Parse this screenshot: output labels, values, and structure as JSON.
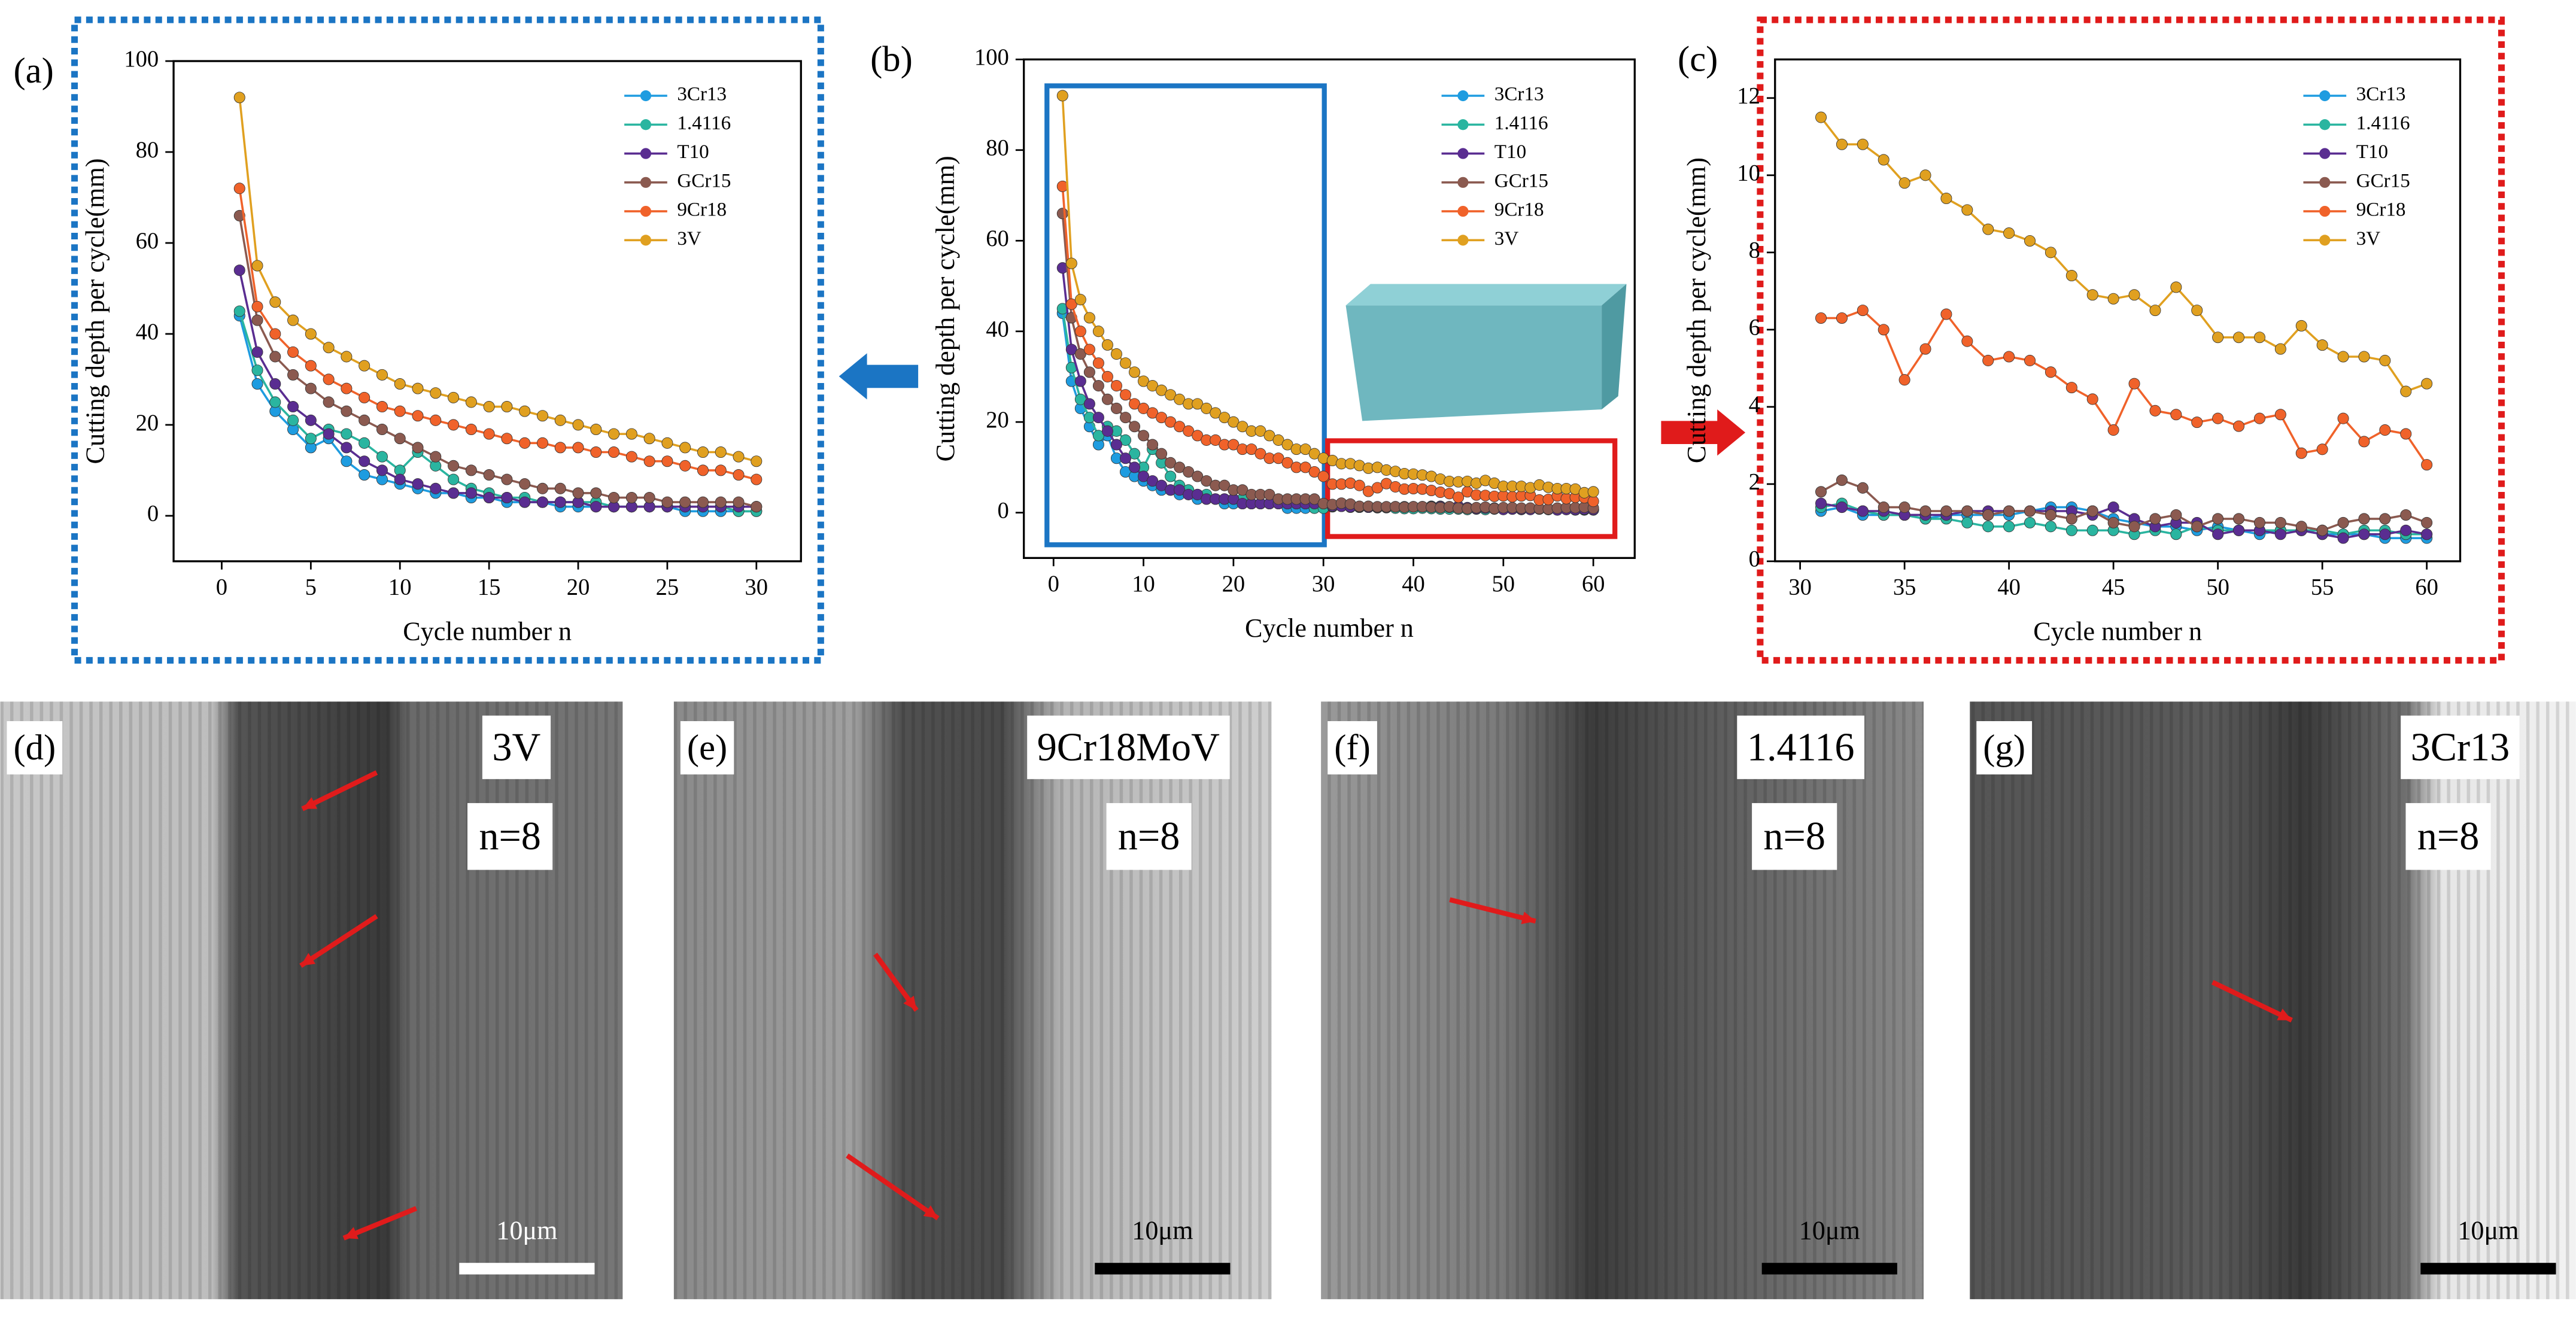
{
  "chart_data": [
    {
      "type": "line",
      "label": "(a)",
      "x_label": "Cycle number n",
      "y_label": "Cutting depth per cycle(mm)",
      "x": [
        1,
        2,
        3,
        4,
        5,
        6,
        7,
        8,
        9,
        10,
        11,
        12,
        13,
        14,
        15,
        16,
        17,
        18,
        19,
        20,
        21,
        22,
        23,
        24,
        25,
        26,
        27,
        28,
        29,
        30
      ],
      "xlim": [
        -2.7,
        32.5
      ],
      "xticks": [
        0,
        5,
        10,
        15,
        20,
        25,
        30
      ],
      "ylim": [
        -10,
        100
      ],
      "yticks": [
        0,
        20,
        40,
        60,
        80,
        100
      ],
      "series": [
        {
          "name": "3Cr13",
          "color": "#1e9ce0",
          "values": [
            44,
            29,
            23,
            19,
            15,
            17,
            12,
            9,
            8,
            7,
            6,
            5,
            5,
            4,
            4,
            3,
            3,
            3,
            2,
            2,
            2,
            2,
            2,
            2,
            2,
            1,
            1,
            1,
            1,
            1
          ]
        },
        {
          "name": "1.4116",
          "color": "#2ab5a0",
          "values": [
            45,
            32,
            25,
            21,
            17,
            19,
            18,
            16,
            13,
            10,
            14,
            11,
            8,
            6,
            5,
            4,
            4,
            3,
            3,
            3,
            3,
            2,
            2,
            2,
            2,
            2,
            2,
            2,
            1,
            1
          ]
        },
        {
          "name": "T10",
          "color": "#5a2d91",
          "values": [
            54,
            36,
            29,
            24,
            21,
            18,
            15,
            12,
            10,
            8,
            7,
            6,
            5,
            5,
            4,
            4,
            3,
            3,
            3,
            3,
            2,
            2,
            2,
            2,
            2,
            2,
            2,
            2,
            2,
            2
          ]
        },
        {
          "name": "GCr15",
          "color": "#8b5a50",
          "values": [
            66,
            43,
            35,
            31,
            28,
            25,
            23,
            21,
            19,
            17,
            15,
            13,
            11,
            10,
            9,
            8,
            7,
            6,
            6,
            5,
            5,
            4,
            4,
            4,
            3,
            3,
            3,
            3,
            3,
            2
          ]
        },
        {
          "name": "9Cr18",
          "color": "#f0622a",
          "values": [
            72,
            46,
            40,
            36,
            33,
            30,
            28,
            26,
            24,
            23,
            22,
            21,
            20,
            19,
            18,
            17,
            16,
            16,
            15,
            15,
            14,
            14,
            13,
            12,
            12,
            11,
            10,
            10,
            9,
            8
          ]
        },
        {
          "name": "3V",
          "color": "#e0a020",
          "values": [
            92,
            55,
            47,
            43,
            40,
            37,
            35,
            33,
            31,
            29,
            28,
            27,
            26,
            25,
            24,
            24,
            23,
            22,
            21,
            20,
            19,
            18,
            18,
            17,
            16,
            15,
            14,
            14,
            13,
            12
          ]
        }
      ]
    },
    {
      "type": "line",
      "label": "(b)",
      "x_label": "Cycle number n",
      "y_label": "Cutting depth per cycle(mm)",
      "x": [
        1,
        2,
        3,
        4,
        5,
        6,
        7,
        8,
        9,
        10,
        11,
        12,
        13,
        14,
        15,
        16,
        17,
        18,
        19,
        20,
        21,
        22,
        23,
        24,
        25,
        26,
        27,
        28,
        29,
        30,
        31,
        32,
        33,
        34,
        35,
        36,
        37,
        38,
        39,
        40,
        41,
        42,
        43,
        44,
        45,
        46,
        47,
        48,
        49,
        50,
        51,
        52,
        53,
        54,
        55,
        56,
        57,
        58,
        59,
        60
      ],
      "xlim": [
        -3.3,
        64.6
      ],
      "xticks": [
        0,
        10,
        20,
        30,
        40,
        50,
        60
      ],
      "ylim": [
        -10,
        100
      ],
      "yticks": [
        0,
        20,
        40,
        60,
        80,
        100
      ],
      "series": [
        {
          "name": "3Cr13",
          "color": "#1e9ce0",
          "values": [
            44,
            29,
            23,
            19,
            15,
            17,
            12,
            9,
            8,
            7,
            6,
            5,
            5,
            4,
            4,
            3,
            3,
            3,
            2,
            2,
            2,
            2,
            2,
            2,
            2,
            1,
            1,
            1,
            1,
            1,
            1.3,
            1.4,
            1.2,
            1.2,
            1.2,
            1.1,
            1.2,
            1.2,
            1.2,
            1.2,
            1.3,
            1.4,
            1.4,
            1.3,
            1.1,
            1.0,
            0.9,
            0.9,
            0.8,
            0.9,
            0.8,
            0.7,
            0.8,
            0.8,
            0.7,
            0.7,
            0.7,
            0.6,
            0.6,
            0.6
          ]
        },
        {
          "name": "1.4116",
          "color": "#2ab5a0",
          "values": [
            45,
            32,
            25,
            21,
            17,
            19,
            18,
            16,
            13,
            10,
            14,
            11,
            8,
            6,
            5,
            4,
            4,
            3,
            3,
            3,
            3,
            2,
            2,
            2,
            2,
            2,
            2,
            2,
            1,
            1,
            1.4,
            1.5,
            1.3,
            1.2,
            1.2,
            1.1,
            1.1,
            1.0,
            0.9,
            0.9,
            1.0,
            0.9,
            0.8,
            0.8,
            0.8,
            0.7,
            0.8,
            0.7,
            0.9,
            0.8,
            0.8,
            0.8,
            0.8,
            0.8,
            0.8,
            0.7,
            0.8,
            0.8,
            0.7,
            0.7
          ]
        },
        {
          "name": "T10",
          "color": "#5a2d91",
          "values": [
            54,
            36,
            29,
            24,
            21,
            18,
            15,
            12,
            10,
            8,
            7,
            6,
            5,
            5,
            4,
            4,
            3,
            3,
            3,
            3,
            2,
            2,
            2,
            2,
            2,
            2,
            2,
            2,
            2,
            2,
            1.5,
            1.4,
            1.3,
            1.3,
            1.2,
            1.2,
            1.2,
            1.3,
            1.3,
            1.3,
            1.3,
            1.3,
            1.3,
            1.2,
            1.4,
            1.1,
            0.9,
            1.0,
            1.0,
            0.7,
            0.8,
            0.8,
            0.7,
            0.8,
            0.7,
            0.6,
            0.7,
            0.7,
            0.8,
            0.7
          ]
        },
        {
          "name": "GCr15",
          "color": "#8b5a50",
          "values": [
            66,
            43,
            35,
            31,
            28,
            25,
            23,
            21,
            19,
            17,
            15,
            13,
            11,
            10,
            9,
            8,
            7,
            6,
            6,
            5,
            5,
            4,
            4,
            4,
            3,
            3,
            3,
            3,
            3,
            2,
            1.8,
            2.1,
            1.9,
            1.4,
            1.4,
            1.3,
            1.3,
            1.3,
            1.2,
            1.3,
            1.3,
            1.2,
            1.1,
            1.3,
            1.0,
            0.9,
            1.1,
            1.2,
            0.9,
            1.1,
            1.1,
            1.0,
            1.0,
            0.9,
            0.8,
            1.0,
            1.1,
            1.1,
            1.2,
            1.0
          ]
        },
        {
          "name": "9Cr18",
          "color": "#f0622a",
          "values": [
            72,
            46,
            40,
            36,
            33,
            30,
            28,
            26,
            24,
            23,
            22,
            21,
            20,
            19,
            18,
            17,
            16,
            16,
            15,
            15,
            14,
            14,
            13,
            12,
            12,
            11,
            10,
            10,
            9,
            8,
            6.3,
            6.3,
            6.5,
            6.0,
            4.7,
            5.5,
            6.4,
            5.7,
            5.2,
            5.3,
            5.2,
            4.9,
            4.5,
            4.2,
            3.4,
            4.6,
            3.9,
            3.8,
            3.6,
            3.7,
            3.5,
            3.7,
            3.8,
            2.8,
            2.9,
            3.7,
            3.1,
            3.4,
            3.3,
            2.5
          ]
        },
        {
          "name": "3V",
          "color": "#e0a020",
          "values": [
            92,
            55,
            47,
            43,
            40,
            37,
            35,
            33,
            31,
            29,
            28,
            27,
            26,
            25,
            24,
            24,
            23,
            22,
            21,
            20,
            19,
            18,
            18,
            17,
            16,
            15,
            14,
            14,
            13,
            12,
            11.5,
            10.8,
            10.8,
            10.4,
            9.8,
            10.0,
            9.4,
            9.1,
            8.6,
            8.5,
            8.3,
            8.0,
            7.4,
            6.9,
            6.8,
            6.9,
            6.5,
            7.1,
            6.5,
            5.8,
            5.8,
            5.8,
            5.5,
            6.1,
            5.6,
            5.3,
            5.3,
            5.2,
            4.4,
            4.6
          ]
        }
      ]
    },
    {
      "type": "line",
      "label": "(c)",
      "x_label": "Cycle number n",
      "y_label": "Cutting depth per cycle(mm)",
      "x": [
        31,
        32,
        33,
        34,
        35,
        36,
        37,
        38,
        39,
        40,
        41,
        42,
        43,
        44,
        45,
        46,
        47,
        48,
        49,
        50,
        51,
        52,
        53,
        54,
        55,
        56,
        57,
        58,
        59,
        60
      ],
      "xlim": [
        28.8,
        61.6
      ],
      "xticks": [
        30,
        35,
        40,
        45,
        50,
        55,
        60
      ],
      "ylim": [
        0,
        13
      ],
      "yticks": [
        0,
        2,
        4,
        6,
        8,
        10,
        12
      ],
      "series": [
        {
          "name": "3Cr13",
          "color": "#1e9ce0",
          "values": [
            1.3,
            1.4,
            1.2,
            1.2,
            1.2,
            1.1,
            1.2,
            1.2,
            1.2,
            1.2,
            1.3,
            1.4,
            1.4,
            1.3,
            1.1,
            1.0,
            0.9,
            0.9,
            0.8,
            0.9,
            0.8,
            0.7,
            0.8,
            0.8,
            0.7,
            0.7,
            0.7,
            0.6,
            0.6,
            0.6
          ]
        },
        {
          "name": "1.4116",
          "color": "#2ab5a0",
          "values": [
            1.4,
            1.5,
            1.3,
            1.2,
            1.2,
            1.1,
            1.1,
            1.0,
            0.9,
            0.9,
            1.0,
            0.9,
            0.8,
            0.8,
            0.8,
            0.7,
            0.8,
            0.7,
            0.9,
            0.8,
            0.8,
            0.8,
            0.8,
            0.8,
            0.8,
            0.7,
            0.8,
            0.8,
            0.7,
            0.7
          ]
        },
        {
          "name": "T10",
          "color": "#5a2d91",
          "values": [
            1.5,
            1.4,
            1.3,
            1.3,
            1.2,
            1.2,
            1.2,
            1.3,
            1.3,
            1.3,
            1.3,
            1.3,
            1.3,
            1.2,
            1.4,
            1.1,
            0.9,
            1.0,
            1.0,
            0.7,
            0.8,
            0.8,
            0.7,
            0.8,
            0.7,
            0.6,
            0.7,
            0.7,
            0.8,
            0.7
          ]
        },
        {
          "name": "GCr15",
          "color": "#8b5a50",
          "values": [
            1.8,
            2.1,
            1.9,
            1.4,
            1.4,
            1.3,
            1.3,
            1.3,
            1.2,
            1.3,
            1.3,
            1.2,
            1.1,
            1.3,
            1.0,
            0.9,
            1.1,
            1.2,
            0.9,
            1.1,
            1.1,
            1.0,
            1.0,
            0.9,
            0.8,
            1.0,
            1.1,
            1.1,
            1.2,
            1.0
          ]
        },
        {
          "name": "9Cr18",
          "color": "#f0622a",
          "values": [
            6.3,
            6.3,
            6.5,
            6.0,
            4.7,
            5.5,
            6.4,
            5.7,
            5.2,
            5.3,
            5.2,
            4.9,
            4.5,
            4.2,
            3.4,
            4.6,
            3.9,
            3.8,
            3.6,
            3.7,
            3.5,
            3.7,
            3.8,
            2.8,
            2.9,
            3.7,
            3.1,
            3.4,
            3.3,
            2.5
          ]
        },
        {
          "name": "3V",
          "color": "#e0a020",
          "values": [
            11.5,
            10.8,
            10.8,
            10.4,
            9.8,
            10.0,
            9.4,
            9.1,
            8.6,
            8.5,
            8.3,
            8.0,
            7.4,
            6.9,
            6.8,
            6.9,
            6.5,
            7.1,
            6.5,
            5.8,
            5.8,
            5.8,
            5.5,
            6.1,
            5.6,
            5.3,
            5.3,
            5.2,
            4.4,
            4.6
          ]
        }
      ]
    }
  ],
  "micrographs": [
    {
      "label": "(d)",
      "material": "3V",
      "cycle": "n=8",
      "scale": "10μm"
    },
    {
      "label": "(e)",
      "material": "9Cr18MoV",
      "cycle": "n=8",
      "scale": "10μm"
    },
    {
      "label": "(f)",
      "material": "1.4116",
      "cycle": "n=8",
      "scale": "10μm"
    },
    {
      "label": "(g)",
      "material": "3Cr13",
      "cycle": "n=8",
      "scale": "10μm"
    }
  ]
}
